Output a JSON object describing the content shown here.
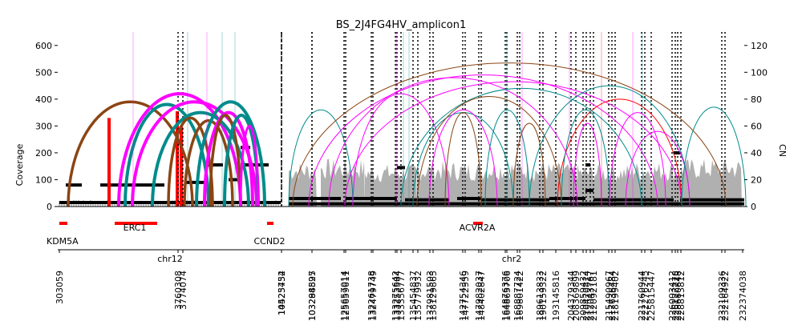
{
  "chart_data": {
    "type": "amplicon-plot",
    "title": "BS_2J4FG4HV_amplicon1",
    "ylabel_left": "Coverage",
    "ylabel_right": "CN",
    "ylim_left": [
      0,
      650
    ],
    "yticks_left": [
      0,
      100,
      200,
      300,
      400,
      500,
      600
    ],
    "ylim_right": [
      0,
      130
    ],
    "yticks_right": [
      0,
      20,
      40,
      60,
      80,
      100,
      120
    ],
    "chromosomes": [
      {
        "name": "chr12",
        "start": 303059,
        "end": 10525434,
        "fraction": 0.368,
        "breakpoints": [
          3760308,
          3774074
        ]
      },
      {
        "name": "chr2",
        "start": 10525434,
        "end": 232374038,
        "fraction": 0.632,
        "breakpoints": [
          14423752,
          103298897,
          103284525,
          125657014,
          125659611,
          132261738,
          132479749,
          133275642,
          133253584,
          133356777,
          135454837,
          135779932,
          137981503,
          138129865,
          142754346,
          147722559,
          147982037,
          148402847,
          164876376,
          164863706,
          168887724,
          169801422,
          189613833,
          190159322,
          193145816,
          204379344,
          208369899,
          209859432,
          210420814,
          212043767,
          212092181,
          215490967,
          217636484,
          218199402,
          221760944,
          222276245,
          225815447,
          226003412,
          226122278,
          228680848,
          228813812,
          232109336,
          232164922
        ]
      }
    ],
    "x_tick_labels": [
      "303059",
      "3760308",
      "3774074",
      "10525434",
      "14423752",
      "103298897",
      "103284525",
      "125657014",
      "125659611",
      "132261738",
      "132479749",
      "133275642",
      "133253584",
      "133356777",
      "135454837",
      "135779932",
      "137981503",
      "138129865",
      "142754346",
      "147722559",
      "147982037",
      "148402847",
      "164876376",
      "164863706",
      "168887724",
      "169801422",
      "189613833",
      "190159322",
      "193145816",
      "204379344",
      "208369899",
      "209859432",
      "210420814",
      "212043767",
      "212092181",
      "215490967",
      "217636484",
      "218199402",
      "221760944",
      "222276245",
      "225815447",
      "226003412",
      "226122278",
      "228680848",
      "228813812",
      "232109336",
      "232164922",
      "232374038"
    ],
    "genes": [
      {
        "name": "KDM5A",
        "chrom": "chr12",
        "pos": 303059
      },
      {
        "name": "ERC1",
        "chrom": "chr12",
        "pos": 1300000
      },
      {
        "name": "CCND2",
        "chrom": "chr12",
        "pos": 4200000
      },
      {
        "name": "ACVR2A",
        "chrom": "chr2",
        "pos": 148600000
      }
    ],
    "arc_colors": {
      "brown": "#8b4513",
      "teal": "#008b8b",
      "magenta": "#ff00ff",
      "red": "#ff0000",
      "coverage": "#b0b0b0",
      "segment": "#000000"
    }
  }
}
